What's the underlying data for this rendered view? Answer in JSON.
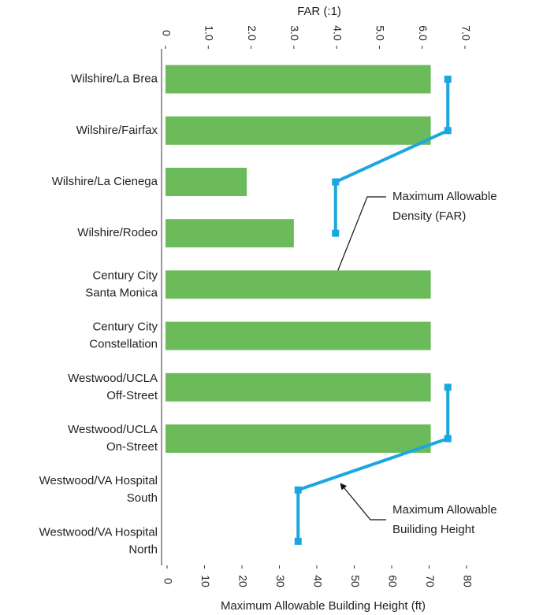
{
  "chart_data": {
    "type": "bar",
    "xlabel_top": "FAR (:1)",
    "xlabel_bottom": "Maximum Allowable Building Height (ft)",
    "categories": [
      [
        "Wilshire/La Brea"
      ],
      [
        "Wilshire/Fairfax"
      ],
      [
        "Wilshire/La Cienega"
      ],
      [
        "Wilshire/Rodeo"
      ],
      [
        "Century City",
        "Santa Monica"
      ],
      [
        "Century City",
        "Constellation"
      ],
      [
        "Westwood/UCLA",
        "Off-Street"
      ],
      [
        "Westwood/UCLA",
        "On-Street"
      ],
      [
        "Westwood/VA Hospital",
        "South"
      ],
      [
        "Westwood/VA Hospital",
        "North"
      ]
    ],
    "xlim": [
      0,
      7
    ],
    "xticks": [
      0,
      {
        "value": 1,
        "label": "1.0"
      },
      {
        "value": 2,
        "label": "2.0"
      },
      {
        "value": 3,
        "label": "3.0"
      },
      {
        "value": 4,
        "label": "4.0"
      },
      {
        "value": 5,
        "label": "5.0"
      },
      {
        "value": 6,
        "label": "6.0"
      },
      {
        "value": 7,
        "label": "7.0"
      }
    ],
    "x2lim": [
      0,
      80
    ],
    "x2ticks": [
      0,
      10,
      20,
      30,
      40,
      50,
      60,
      70,
      80
    ],
    "series": [
      {
        "name": [
          "Maximum Allowable",
          "Density (FAR)"
        ],
        "type": "bar",
        "color": "#6cbb5a",
        "values": [
          6.2,
          6.2,
          1.9,
          3.0,
          6.2,
          6.2,
          6.2,
          6.2,
          null,
          null
        ]
      },
      {
        "name": [
          "Maximum Allowable",
          "Builiding Height"
        ],
        "type": "line",
        "axis": "x2",
        "color": "#1ba6e0",
        "values": [
          75,
          75,
          45,
          45,
          null,
          null,
          75,
          75,
          35,
          35
        ]
      }
    ]
  }
}
